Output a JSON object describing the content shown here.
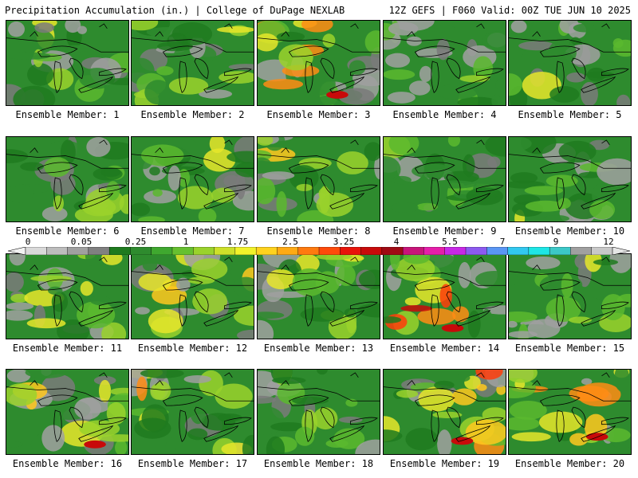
{
  "header": {
    "left": "Precipitation Accumulation (in.) | College of DuPage NEXLAB",
    "right": "12Z GEFS | F060 Valid: 00Z TUE JUN 10 2025"
  },
  "members": [
    {
      "label": "Ensemble Member: 1",
      "intensity": 0.35
    },
    {
      "label": "Ensemble Member: 2",
      "intensity": 0.45
    },
    {
      "label": "Ensemble Member: 3",
      "intensity": 0.7
    },
    {
      "label": "Ensemble Member: 4",
      "intensity": 0.3
    },
    {
      "label": "Ensemble Member: 5",
      "intensity": 0.35
    },
    {
      "label": "Ensemble Member: 6",
      "intensity": 0.35
    },
    {
      "label": "Ensemble Member: 7",
      "intensity": 0.4
    },
    {
      "label": "Ensemble Member: 8",
      "intensity": 0.45
    },
    {
      "label": "Ensemble Member: 9",
      "intensity": 0.3
    },
    {
      "label": "Ensemble Member: 10",
      "intensity": 0.4
    },
    {
      "label": "Ensemble Member: 11",
      "intensity": 0.45
    },
    {
      "label": "Ensemble Member: 12",
      "intensity": 0.5
    },
    {
      "label": "Ensemble Member: 13",
      "intensity": 0.45
    },
    {
      "label": "Ensemble Member: 14",
      "intensity": 0.8
    },
    {
      "label": "Ensemble Member: 15",
      "intensity": 0.4
    },
    {
      "label": "Ensemble Member: 16",
      "intensity": 0.6
    },
    {
      "label": "Ensemble Member: 17",
      "intensity": 0.55
    },
    {
      "label": "Ensemble Member: 18",
      "intensity": 0.4
    },
    {
      "label": "Ensemble Member: 19",
      "intensity": 0.65
    },
    {
      "label": "Ensemble Member: 20",
      "intensity": 0.6
    }
  ],
  "colorbar": {
    "labels": [
      "0",
      "0.05",
      "0.25",
      "1",
      "1.75",
      "2.5",
      "3.25",
      "4",
      "5.5",
      "7",
      "9",
      "12"
    ],
    "colors": [
      "#d9d9d9",
      "#bdbdbd",
      "#a0a0a0",
      "#808080",
      "#1e7a1e",
      "#2e8b2e",
      "#3fa82f",
      "#66c030",
      "#9ad22c",
      "#cde02a",
      "#f2f22a",
      "#ffd21e",
      "#ffaa14",
      "#ff7a0f",
      "#ff4a0a",
      "#e8140a",
      "#c80a0a",
      "#a00a14",
      "#c8147a",
      "#e61eaa",
      "#c828e6",
      "#8c5af0",
      "#5a96f5",
      "#32c8f0",
      "#1ee6e6",
      "#3cc8c8",
      "#a0a0a0",
      "#c8c8c8"
    ],
    "ramp": [
      "#7a7a7a",
      "#a0a0a0",
      "#1e7a1e",
      "#2e8b2e",
      "#5ab82e",
      "#9ad22c",
      "#e6e62a",
      "#ffc81e",
      "#ff8c14",
      "#ff3c0a",
      "#c80a0a"
    ]
  }
}
